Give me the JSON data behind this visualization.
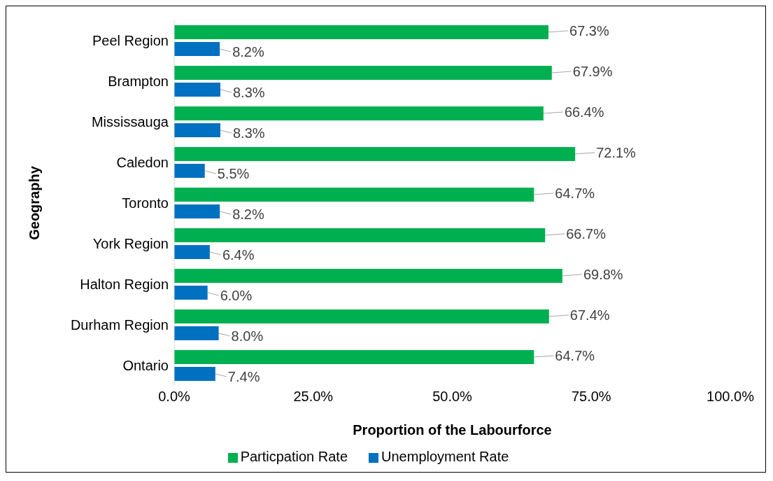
{
  "chart_data": {
    "type": "bar",
    "orientation": "horizontal",
    "xlabel": "Proportion of the Labourforce",
    "ylabel": "Geography",
    "categories": [
      "Peel Region",
      "Brampton",
      "Mississauga",
      "Caledon",
      "Toronto",
      "York Region",
      "Halton Region",
      "Durham Region",
      "Ontario"
    ],
    "series": [
      {
        "name": "Particpation Rate",
        "color": "#00b050",
        "values": [
          67.3,
          67.9,
          66.4,
          72.1,
          64.7,
          66.7,
          69.8,
          67.4,
          64.7
        ],
        "value_labels": [
          "67.3%",
          "67.9%",
          "66.4%",
          "72.1%",
          "64.7%",
          "66.7%",
          "69.8%",
          "67.4%",
          "64.7%"
        ]
      },
      {
        "name": "Unemployment Rate",
        "color": "#0070c0",
        "values": [
          8.2,
          8.3,
          8.3,
          5.5,
          8.2,
          6.4,
          6.0,
          8.0,
          7.4
        ],
        "value_labels": [
          "8.2%",
          "8.3%",
          "8.3%",
          "5.5%",
          "8.2%",
          "6.4%",
          "6.0%",
          "8.0%",
          "7.4%"
        ]
      }
    ],
    "xlim": [
      0,
      100
    ],
    "xticks": [
      {
        "value": 0,
        "label": "0.0%"
      },
      {
        "value": 25,
        "label": "25.0%"
      },
      {
        "value": 50,
        "label": "50.0%"
      },
      {
        "value": 75,
        "label": "75.0%"
      },
      {
        "value": 100,
        "label": "100.0%"
      }
    ],
    "grid": false,
    "legend": "bottom"
  }
}
